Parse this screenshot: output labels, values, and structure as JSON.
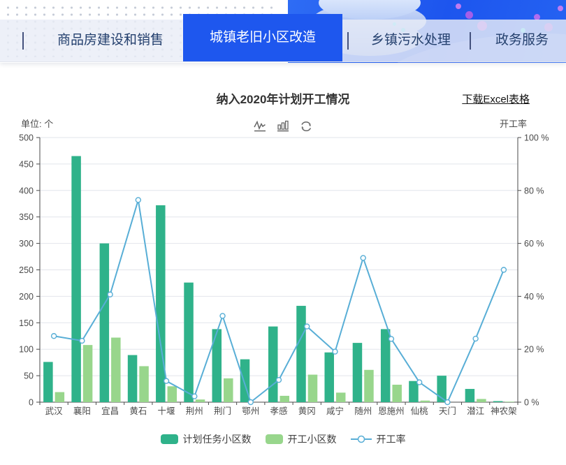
{
  "tabs": [
    {
      "label": "商品房建设和销售",
      "active": false
    },
    {
      "label": "城镇老旧小区改造",
      "active": true
    },
    {
      "label": "乡镇污水处理",
      "active": false
    },
    {
      "label": "政务服务",
      "active": false
    }
  ],
  "page": {
    "title": "纳入2020年计划开工情况",
    "download_label": "下载Excel表格",
    "left_unit": "单位: 个",
    "right_axis_title": "开工率"
  },
  "toolbar": {
    "icons": [
      "line-chart-icon",
      "bar-chart-icon",
      "refresh-icon"
    ]
  },
  "colors": {
    "active_tab": "#1e57ee",
    "tab_text": "#24406e",
    "bar_planned": "#2fb28a",
    "bar_started": "#98d68c",
    "line_rate": "#58aed6",
    "axis": "#4a4a4a",
    "gridline": "#e2e5eb"
  },
  "chart_data": {
    "type": "bar+line",
    "title": "纳入2020年计划开工情况",
    "categories": [
      "武汉",
      "襄阳",
      "宜昌",
      "黄石",
      "十堰",
      "荆州",
      "荆门",
      "鄂州",
      "孝感",
      "黄冈",
      "咸宁",
      "随州",
      "恩施州",
      "仙桃",
      "天门",
      "潜江",
      "神农架"
    ],
    "series": [
      {
        "name": "计划任务小区数",
        "type": "bar",
        "axis": "left",
        "color": "#2fb28a",
        "values": [
          76,
          465,
          300,
          89,
          372,
          226,
          138,
          81,
          143,
          182,
          94,
          112,
          138,
          40,
          50,
          25,
          2
        ]
      },
      {
        "name": "开工小区数",
        "type": "bar",
        "axis": "left",
        "color": "#98d68c",
        "values": [
          19,
          108,
          122,
          68,
          30,
          5,
          45,
          0,
          12,
          52,
          18,
          61,
          33,
          3,
          0,
          6,
          1
        ]
      },
      {
        "name": "开工率",
        "type": "line",
        "axis": "right",
        "color": "#58aed6",
        "unit": "%",
        "values": [
          25,
          23.2,
          40.7,
          76.4,
          8,
          2.2,
          32.6,
          0,
          8.4,
          28.6,
          19.1,
          54.5,
          23.9,
          7.5,
          0,
          24,
          50
        ]
      }
    ],
    "left_axis": {
      "title": "单位: 个",
      "min": 0,
      "max": 500,
      "step": 50
    },
    "right_axis": {
      "title": "开工率",
      "min": 0,
      "max": 100,
      "step": 20,
      "suffix": " %"
    },
    "grid": true,
    "legend_position": "bottom"
  }
}
